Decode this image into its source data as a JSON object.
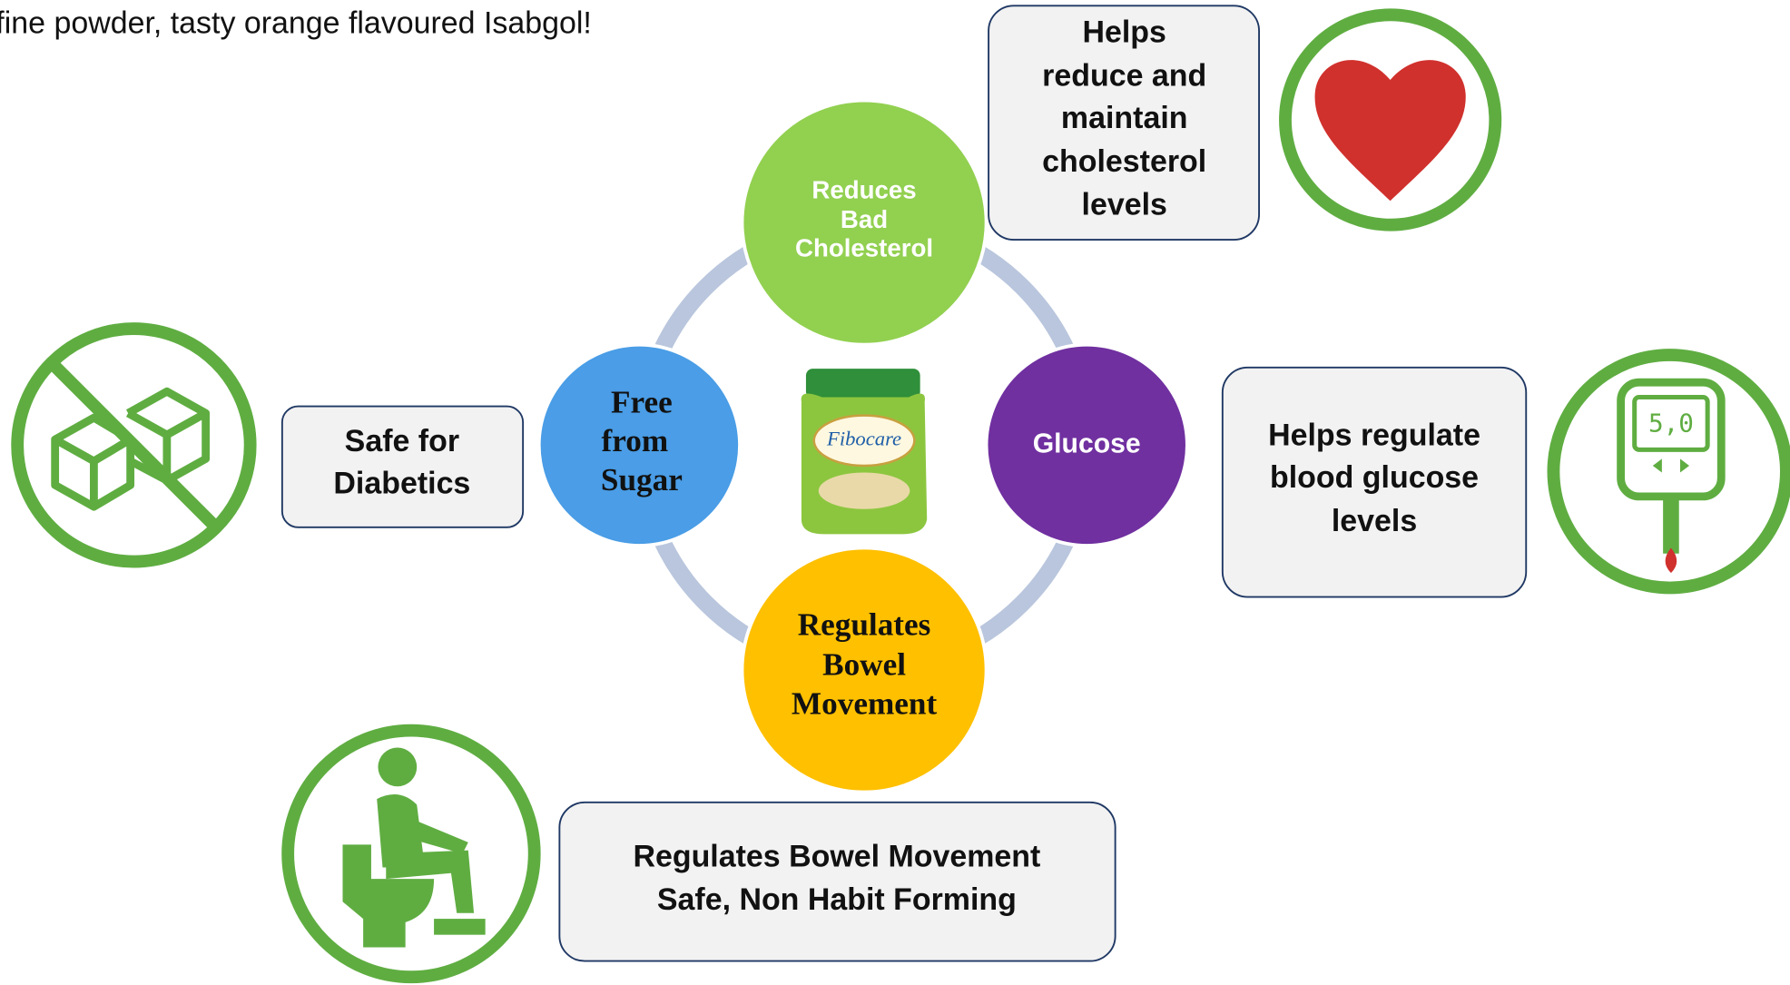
{
  "header": {
    "text": "fine powder, tasty orange flavoured Isabgol!"
  },
  "nodes": [
    {
      "lines": [
        "Reduces",
        "Bad",
        "Cholesterol"
      ]
    },
    {
      "lines": [
        "Free",
        "from",
        "Sugar"
      ]
    },
    {
      "lines": [
        "Glucose"
      ]
    },
    {
      "lines": [
        "Regulates",
        "Bowel",
        "Movement"
      ]
    }
  ],
  "product": {
    "brand": "Fibocare"
  },
  "callouts": [
    {
      "lines": [
        "Helps",
        "reduce and",
        "maintain",
        "cholesterol",
        "levels"
      ]
    },
    {
      "lines": [
        "Safe for",
        "Diabetics"
      ]
    },
    {
      "lines": [
        "Helps regulate",
        "blood glucose",
        "levels"
      ]
    },
    {
      "lines": [
        "Regulates Bowel Movement",
        "Safe, Non Habit Forming"
      ]
    }
  ],
  "icons": {
    "meter_display": "5,0"
  }
}
